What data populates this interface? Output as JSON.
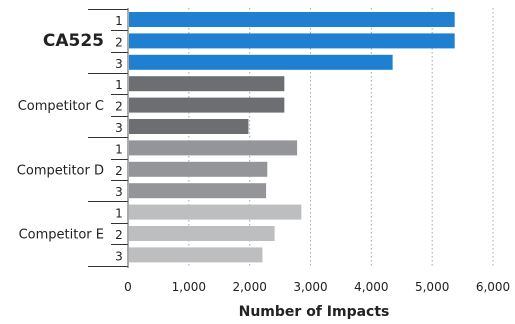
{
  "chart_data": {
    "type": "bar",
    "orientation": "horizontal",
    "xlabel": "Number of Impacts",
    "xlim": [
      0,
      6000
    ],
    "xticks": [
      0,
      1000,
      2000,
      3000,
      4000,
      5000,
      6000
    ],
    "xtick_labels": [
      "0",
      "1,000",
      "2,000",
      "3,000",
      "4,000",
      "5,000",
      "6,000"
    ],
    "grid": "vertical dotted",
    "groups": [
      {
        "name": "CA525",
        "bold": true,
        "color": "#1f7fd1",
        "bars": [
          {
            "label": "1",
            "value": 5370
          },
          {
            "label": "2",
            "value": 5370
          },
          {
            "label": "3",
            "value": 4350
          }
        ]
      },
      {
        "name": "Competitor C",
        "bold": false,
        "color": "#6d6e71",
        "bars": [
          {
            "label": "1",
            "value": 2570
          },
          {
            "label": "2",
            "value": 2570
          },
          {
            "label": "3",
            "value": 1980
          }
        ]
      },
      {
        "name": "Competitor D",
        "bold": false,
        "color": "#939598",
        "bars": [
          {
            "label": "1",
            "value": 2780
          },
          {
            "label": "2",
            "value": 2290
          },
          {
            "label": "3",
            "value": 2270
          }
        ]
      },
      {
        "name": "Competitor E",
        "bold": false,
        "color": "#bcbec0",
        "bars": [
          {
            "label": "1",
            "value": 2850
          },
          {
            "label": "2",
            "value": 2410
          },
          {
            "label": "3",
            "value": 2210
          }
        ]
      }
    ]
  }
}
